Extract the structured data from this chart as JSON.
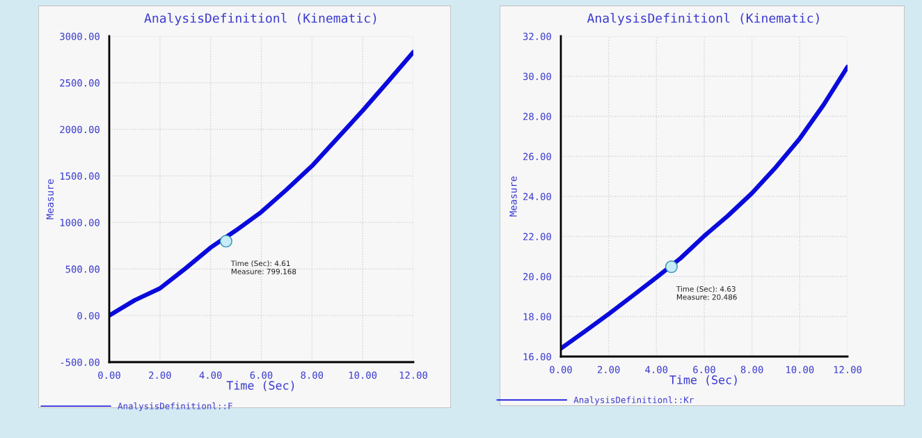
{
  "chart_data": [
    {
      "type": "line",
      "title": "AnalysisDefinitionl (Kinematic)",
      "xlabel": "Time (Sec)",
      "ylabel": "Measure",
      "x": [
        0,
        1,
        2,
        3,
        4,
        5,
        6,
        7,
        8,
        9,
        10,
        11,
        12
      ],
      "series": [
        {
          "name": "AnalysisDefinitionl::F",
          "color": "#0a0adc",
          "values": [
            0,
            164,
            292,
            504,
            730,
            914,
            1112,
            1353,
            1607,
            1904,
            2201,
            2513,
            2830
          ]
        }
      ],
      "xlim": [
        0,
        12
      ],
      "ylim": [
        -500,
        3000
      ],
      "xticks": [
        {
          "value": 0,
          "label": "0.00"
        },
        {
          "value": 2,
          "label": "2.00"
        },
        {
          "value": 4,
          "label": "4.00"
        },
        {
          "value": 6,
          "label": "6.00"
        },
        {
          "value": 8,
          "label": "8.00"
        },
        {
          "value": 10,
          "label": "10.00"
        },
        {
          "value": 12,
          "label": "12.00"
        }
      ],
      "yticks": [
        {
          "value": -500,
          "label": "-500.00"
        },
        {
          "value": 0,
          "label": "0.00"
        },
        {
          "value": 500,
          "label": "500.00"
        },
        {
          "value": 1000,
          "label": "1000.00"
        },
        {
          "value": 1500,
          "label": "1500.00"
        },
        {
          "value": 2000,
          "label": "2000.00"
        },
        {
          "value": 2500,
          "label": "2500.00"
        },
        {
          "value": 3000,
          "label": "3000.00"
        }
      ],
      "annotations": [
        {
          "text": "Time (Sec): 4.61\nMeasure: 799.168",
          "x": 4.61,
          "y": 799.168
        }
      ],
      "grid": true,
      "legend": "bottom left",
      "line_style": "solid"
    },
    {
      "type": "line",
      "title": "AnalysisDefinitionl (Kinematic)",
      "xlabel": "Time (Sec)",
      "ylabel": "Measure",
      "x": [
        0,
        1,
        2,
        3,
        4,
        5,
        6,
        7,
        8,
        9,
        10,
        11,
        12
      ],
      "series": [
        {
          "name": "AnalysisDefinitionl::Kr",
          "color": "#0a0adc",
          "values": [
            16.4,
            17.25,
            18.12,
            19.03,
            19.95,
            20.9,
            22.02,
            23.04,
            24.16,
            25.46,
            26.89,
            28.58,
            30.47
          ]
        }
      ],
      "xlim": [
        0,
        12
      ],
      "ylim": [
        16,
        32
      ],
      "xticks": [
        {
          "value": 0,
          "label": "0.00"
        },
        {
          "value": 2,
          "label": "2.00"
        },
        {
          "value": 4,
          "label": "4.00"
        },
        {
          "value": 6,
          "label": "6.00"
        },
        {
          "value": 8,
          "label": "8.00"
        },
        {
          "value": 10,
          "label": "10.00"
        },
        {
          "value": 12,
          "label": "12.00"
        }
      ],
      "yticks": [
        {
          "value": 16,
          "label": "16.00"
        },
        {
          "value": 18,
          "label": "18.00"
        },
        {
          "value": 20,
          "label": "20.00"
        },
        {
          "value": 22,
          "label": "22.00"
        },
        {
          "value": 24,
          "label": "24.00"
        },
        {
          "value": 26,
          "label": "26.00"
        },
        {
          "value": 28,
          "label": "28.00"
        },
        {
          "value": 30,
          "label": "30.00"
        },
        {
          "value": 32,
          "label": "32.00"
        }
      ],
      "annotations": [
        {
          "text": "Time (Sec): 4.63\nMeasure: 20.486",
          "x": 4.63,
          "y": 20.486
        }
      ],
      "grid": true,
      "legend": "bottom left",
      "line_style": "solid"
    }
  ]
}
